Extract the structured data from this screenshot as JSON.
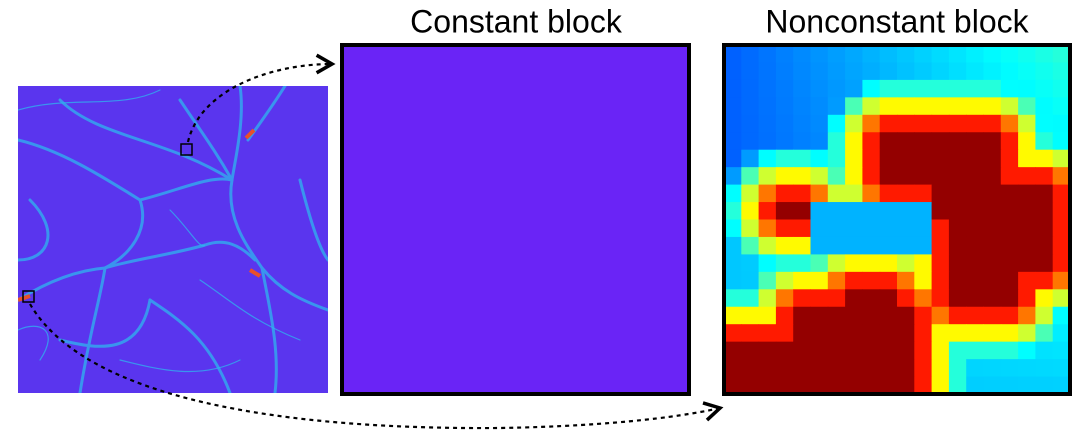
{
  "panels": [
    {
      "title": "Constant block"
    },
    {
      "title": "Nonconstant block"
    }
  ]
}
